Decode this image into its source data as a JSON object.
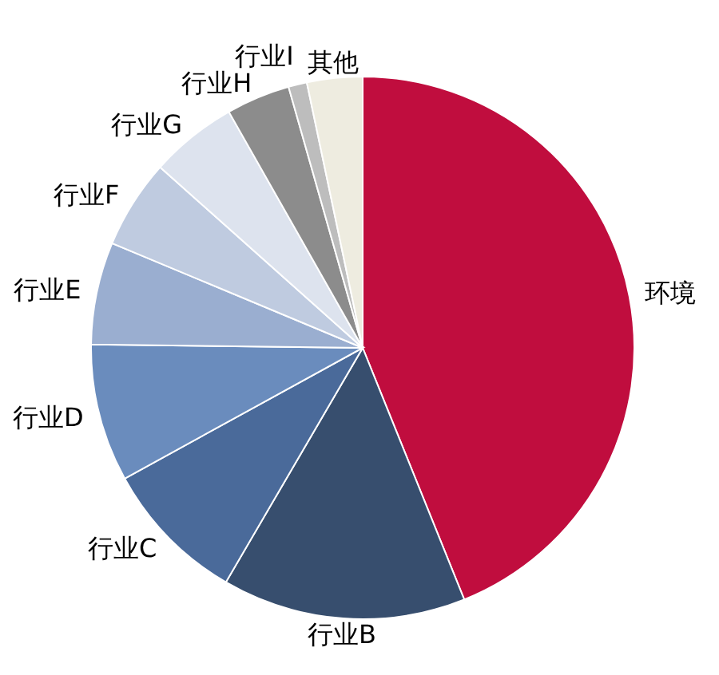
{
  "chart_data": {
    "type": "pie",
    "categories": [
      "环境",
      "行业B",
      "行业C",
      "行业D",
      "行业E",
      "行业F",
      "行业G",
      "行业H",
      "行业I",
      "其他"
    ],
    "values": [
      43.9,
      14.5,
      8.6,
      8.2,
      6.1,
      5.3,
      5.2,
      3.8,
      1.1,
      3.3
    ],
    "colors": [
      "#c00d3e",
      "#374e6e",
      "#4a6a9a",
      "#6a8cbd",
      "#9aaed0",
      "#bfcbe0",
      "#dde3ee",
      "#8c8c8c",
      "#bdbdbd",
      "#eeece0"
    ],
    "legend": false
  }
}
